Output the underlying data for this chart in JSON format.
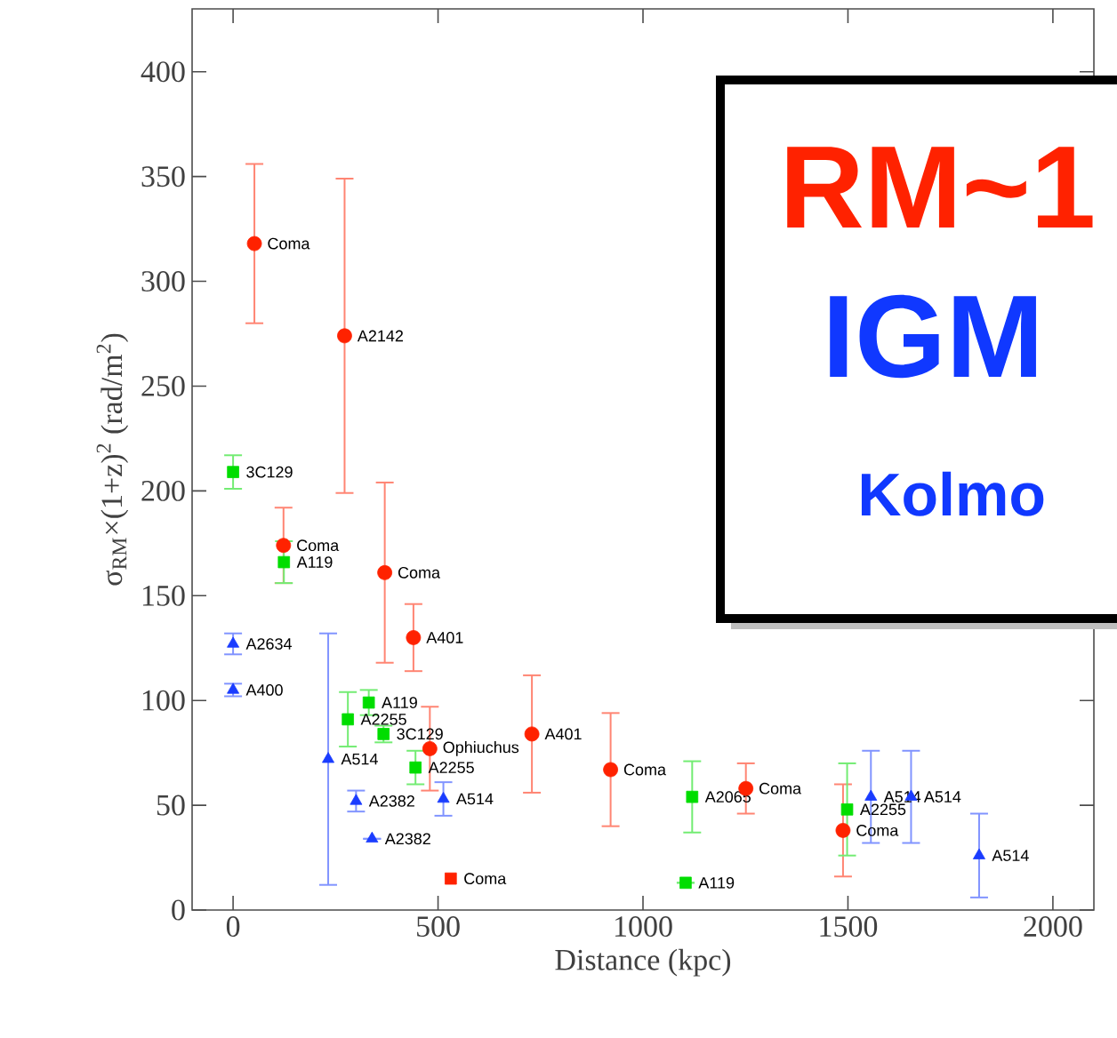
{
  "chart_data": {
    "type": "scatter",
    "xlabel": "Distance (kpc)",
    "ylabel": "σ$_{RM}$×(1+z)$^{2}$ (rad/m$^{2}$)",
    "xlim": [
      -100,
      2100
    ],
    "ylim": [
      0,
      430
    ],
    "xticks": [
      0,
      500,
      1000,
      1500,
      2000
    ],
    "yticks": [
      0,
      50,
      100,
      150,
      200,
      250,
      300,
      350,
      400
    ],
    "grid": false,
    "series": [
      {
        "color": "#ff2200",
        "marker": "circle",
        "x": [
          52,
          272,
          123,
          370,
          440,
          480,
          729,
          921,
          1251,
          1488
        ],
        "values": [
          318,
          274,
          174,
          161,
          130,
          77,
          84,
          67,
          58,
          38
        ],
        "errors": [
          38,
          75,
          18,
          43,
          16,
          20,
          28,
          27,
          12,
          22
        ]
      },
      {
        "color": "#ff2200",
        "marker": "square",
        "x": [
          531
        ],
        "values": [
          15
        ]
      },
      {
        "color": "#00dd00",
        "marker": "square",
        "x": [
          0,
          124,
          280,
          331,
          367,
          445,
          1120,
          1104,
          1498
        ],
        "values": [
          209,
          166,
          91,
          99,
          84,
          68,
          54,
          13,
          48
        ],
        "errors": [
          8,
          10,
          13,
          6,
          4,
          8,
          17,
          null,
          22
        ]
      },
      {
        "color": "#1a3cff",
        "marker": "triangle",
        "x": [
          0,
          0,
          232,
          300,
          339,
          513,
          1556,
          1654,
          1820
        ],
        "values": [
          127,
          105,
          72,
          52,
          34,
          53,
          54,
          54,
          26
        ],
        "errors": [
          5,
          3,
          60,
          5,
          null,
          8,
          22,
          22,
          20
        ]
      }
    ],
    "annotations": [
      {
        "text": "Coma",
        "x": 52,
        "y": 318
      },
      {
        "text": "A2142",
        "x": 272,
        "y": 274
      },
      {
        "text": "Coma",
        "x": 123,
        "y": 174
      },
      {
        "text": "Coma",
        "x": 370,
        "y": 161
      },
      {
        "text": "A401",
        "x": 440,
        "y": 130
      },
      {
        "text": "Ophiuchus",
        "x": 480,
        "y": 77
      },
      {
        "text": "A401",
        "x": 729,
        "y": 84
      },
      {
        "text": "Coma",
        "x": 921,
        "y": 67
      },
      {
        "text": "Coma",
        "x": 1251,
        "y": 58
      },
      {
        "text": "Coma",
        "x": 1488,
        "y": 38
      },
      {
        "text": "Coma",
        "x": 531,
        "y": 15
      },
      {
        "text": "3C129",
        "x": 0,
        "y": 209
      },
      {
        "text": "A119",
        "x": 124,
        "y": 166
      },
      {
        "text": "A2255",
        "x": 280,
        "y": 91
      },
      {
        "text": "A119",
        "x": 331,
        "y": 99
      },
      {
        "text": "3C129",
        "x": 367,
        "y": 84
      },
      {
        "text": "A2255",
        "x": 445,
        "y": 68
      },
      {
        "text": "A2065",
        "x": 1120,
        "y": 54
      },
      {
        "text": "A119",
        "x": 1104,
        "y": 13
      },
      {
        "text": "A2255",
        "x": 1498,
        "y": 48
      },
      {
        "text": "A2634",
        "x": 0,
        "y": 127
      },
      {
        "text": "A400",
        "x": 0,
        "y": 105
      },
      {
        "text": "A514",
        "x": 232,
        "y": 72
      },
      {
        "text": "A2382",
        "x": 300,
        "y": 52
      },
      {
        "text": "A2382",
        "x": 339,
        "y": 34
      },
      {
        "text": "A514",
        "x": 513,
        "y": 53
      },
      {
        "text": "A514",
        "x": 1556,
        "y": 54
      },
      {
        "text": "A514",
        "x": 1654,
        "y": 54
      },
      {
        "text": "A514",
        "x": 1820,
        "y": 26
      },
      "RM~1",
      "IGM",
      "Kolmo"
    ]
  }
}
